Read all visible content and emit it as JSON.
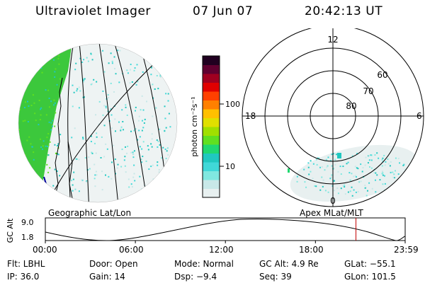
{
  "header": {
    "instrument": "Ultraviolet Imager",
    "date": "07 Jun 07",
    "time": "20:42:13 UT"
  },
  "left_panel": {
    "label": "Geographic Lat/Lon"
  },
  "color_scale": {
    "unit_label": "photon cm⁻²s⁻¹",
    "ticks": [
      {
        "label": "100",
        "value": 100
      },
      {
        "label": "10",
        "value": 10
      }
    ],
    "colors": [
      "#e8f0f0",
      "#c8e8e8",
      "#80e8e0",
      "#40d8d8",
      "#20c8c0",
      "#20d870",
      "#60e020",
      "#a0e000",
      "#e0e000",
      "#ffc000",
      "#ff8000",
      "#ff4000",
      "#e00000",
      "#a00020",
      "#600030",
      "#200020"
    ]
  },
  "right_panel": {
    "label": "Apex MLat/MLT",
    "mlt_labels": [
      {
        "label": "12",
        "pos": "top"
      },
      {
        "label": "18",
        "pos": "left"
      },
      {
        "label": "6",
        "pos": "right"
      },
      {
        "label": "0",
        "pos": "bottom"
      }
    ],
    "lat_labels": [
      {
        "label": "60",
        "lat": 60
      },
      {
        "label": "70",
        "lat": 70
      },
      {
        "label": "80",
        "lat": 80
      }
    ]
  },
  "altitude_plot": {
    "ylabel": "GC Alt",
    "yticks": [
      {
        "label": "9.0"
      },
      {
        "label": "1.8"
      }
    ],
    "xticks": [
      {
        "label": "00:00",
        "hour": 0
      },
      {
        "label": "06:00",
        "hour": 6
      },
      {
        "label": "12:00",
        "hour": 12
      },
      {
        "label": "18:00",
        "hour": 18
      },
      {
        "label": "23:59",
        "hour": 23.98
      }
    ],
    "current_hour": 20.7,
    "marker_color": "#c00000"
  },
  "info": {
    "row1": {
      "filter": "Flt: LBHL",
      "door": "Door: Open",
      "mode": "Mode: Normal",
      "gc_alt": "GC Alt: 4.9 Re",
      "glat": "GLat: −55.1"
    },
    "row2": {
      "ip": "IP: 36.0",
      "gain": "Gain: 14",
      "dsp": "Dsp:   −9.4",
      "seq": "Seq: 39",
      "glon": "GLon: 101.5"
    }
  }
}
